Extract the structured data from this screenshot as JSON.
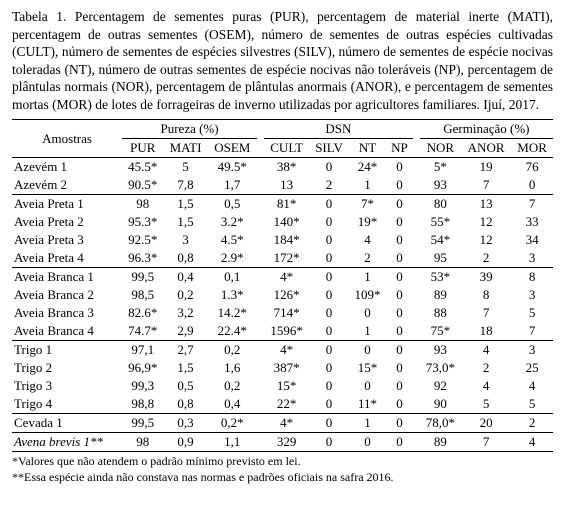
{
  "caption": "Tabela 1. Percentagem de sementes puras (PUR), percentagem de material inerte (MATI), percentagem de outras sementes (OSEM), número de sementes de outras espécies cultivadas (CULT), número de sementes de espécies silvestres (SILV), número de sementes de espécie nocivas toleradas (NT), número de outras sementes de espécie nocivas não toleráveis (NP), percentagem de plântulas normais (NOR), percentagem de plântulas anormais (ANOR), e percentagem de sementes mortas (MOR) de lotes de forrageiras de inverno utilizadas por agricultores familiares. Ijuí, 2017.",
  "headers": {
    "samples": "Amostras",
    "purity": "Pureza (%)",
    "dsn": "DSN",
    "germ": "Germinação (%)",
    "cols": [
      "PUR",
      "MATI",
      "OSEM",
      "CULT",
      "SILV",
      "NT",
      "NP",
      "NOR",
      "ANOR",
      "MOR"
    ]
  },
  "rows": [
    {
      "label": "Azevém 1",
      "v": [
        "45.5*",
        "5",
        "49.5*",
        "38*",
        "0",
        "24*",
        "0",
        "5*",
        "19",
        "76"
      ],
      "italic": false,
      "sep": false
    },
    {
      "label": "Azevém 2",
      "v": [
        "90.5*",
        "7,8",
        "1,7",
        "13",
        "2",
        "1",
        "0",
        "93",
        "7",
        "0"
      ],
      "italic": false,
      "sep": true
    },
    {
      "label": "Aveia Preta 1",
      "v": [
        "98",
        "1,5",
        "0,5",
        "81*",
        "0",
        "7*",
        "0",
        "80",
        "13",
        "7"
      ],
      "italic": false,
      "sep": false
    },
    {
      "label": "Aveia Preta 2",
      "v": [
        "95.3*",
        "1,5",
        "3.2*",
        "140*",
        "0",
        "19*",
        "0",
        "55*",
        "12",
        "33"
      ],
      "italic": false,
      "sep": false
    },
    {
      "label": "Aveia Preta 3",
      "v": [
        "92.5*",
        "3",
        "4.5*",
        "184*",
        "0",
        "4",
        "0",
        "54*",
        "12",
        "34"
      ],
      "italic": false,
      "sep": false
    },
    {
      "label": "Aveia Preta 4",
      "v": [
        "96.3*",
        "0,8",
        "2.9*",
        "172*",
        "0",
        "2",
        "0",
        "95",
        "2",
        "3"
      ],
      "italic": false,
      "sep": true
    },
    {
      "label": "Aveia Branca 1",
      "v": [
        "99,5",
        "0,4",
        "0,1",
        "4*",
        "0",
        "1",
        "0",
        "53*",
        "39",
        "8"
      ],
      "italic": false,
      "sep": false
    },
    {
      "label": "Aveia Branca 2",
      "v": [
        "98,5",
        "0,2",
        "1.3*",
        "126*",
        "0",
        "109*",
        "0",
        "89",
        "8",
        "3"
      ],
      "italic": false,
      "sep": false
    },
    {
      "label": "Aveia Branca 3",
      "v": [
        "82.6*",
        "3,2",
        "14.2*",
        "714*",
        "0",
        "0",
        "0",
        "88",
        "7",
        "5"
      ],
      "italic": false,
      "sep": false
    },
    {
      "label": "Aveia Branca 4",
      "v": [
        "74.7*",
        "2,9",
        "22.4*",
        "1596*",
        "0",
        "1",
        "0",
        "75*",
        "18",
        "7"
      ],
      "italic": false,
      "sep": true
    },
    {
      "label": "Trigo 1",
      "v": [
        "97,1",
        "2,7",
        "0,2",
        "4*",
        "0",
        "0",
        "0",
        "93",
        "4",
        "3"
      ],
      "italic": false,
      "sep": false
    },
    {
      "label": "Trigo 2",
      "v": [
        "96,9*",
        "1,5",
        "1,6",
        "387*",
        "0",
        "15*",
        "0",
        "73,0*",
        "2",
        "25"
      ],
      "italic": false,
      "sep": false
    },
    {
      "label": "Trigo 3",
      "v": [
        "99,3",
        "0,5",
        "0,2",
        "15*",
        "0",
        "0",
        "0",
        "92",
        "4",
        "4"
      ],
      "italic": false,
      "sep": false
    },
    {
      "label": "Trigo 4",
      "v": [
        "98,8",
        "0,8",
        "0,4",
        "22*",
        "0",
        "11*",
        "0",
        "90",
        "5",
        "5"
      ],
      "italic": false,
      "sep": true
    },
    {
      "label": "Cevada 1",
      "v": [
        "99,5",
        "0,3",
        "0,2*",
        "4*",
        "0",
        "1",
        "0",
        "78,0*",
        "20",
        "2"
      ],
      "italic": false,
      "sep": true
    },
    {
      "label": "Avena brevis 1**",
      "v": [
        "98",
        "0,9",
        "1,1",
        "329",
        "0",
        "0",
        "0",
        "89",
        "7",
        "4"
      ],
      "italic": true,
      "sep": false
    }
  ],
  "footnotes": {
    "f1": "*Valores que não atendem o padrão mínimo previsto em lei.",
    "f2": "**Essa espécie ainda não constava nas normas e padrões oficiais na safra 2016."
  }
}
